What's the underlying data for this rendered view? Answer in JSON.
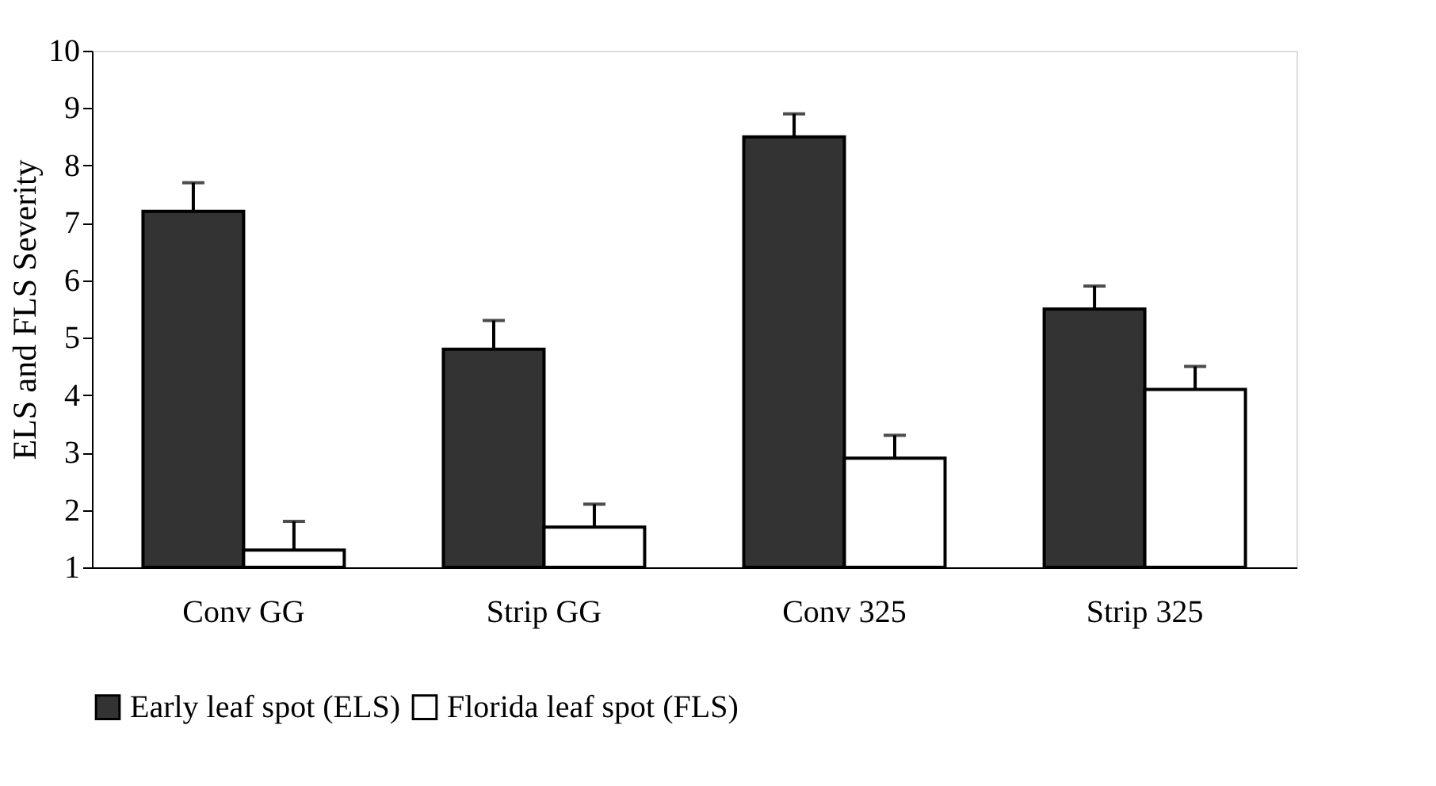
{
  "chart_data": {
    "type": "bar",
    "ylabel": "ELS and FLS Severity",
    "categories": [
      "Conv GG",
      "Strip GG",
      "Conv 325",
      "Strip 325"
    ],
    "series": [
      {
        "name": "Early leaf spot (ELS)",
        "color": "#333333",
        "values": [
          7.2,
          4.8,
          8.5,
          5.5
        ],
        "errors": [
          [
            7.2,
            7.7
          ],
          [
            4.8,
            5.3
          ],
          [
            8.5,
            8.9
          ],
          [
            5.5,
            5.9
          ]
        ]
      },
      {
        "name": "Florida leaf spot (FLS)",
        "color": "#ffffff",
        "values": [
          1.3,
          1.7,
          2.9,
          4.1
        ],
        "errors": [
          [
            1.3,
            1.8
          ],
          [
            1.7,
            2.1
          ],
          [
            2.9,
            3.3
          ],
          [
            4.1,
            4.5
          ]
        ]
      }
    ],
    "ylim": [
      1,
      10
    ],
    "yticks": [
      1,
      2,
      3,
      4,
      5,
      6,
      7,
      8,
      9,
      10
    ],
    "grid": false,
    "legend": "bottom"
  }
}
